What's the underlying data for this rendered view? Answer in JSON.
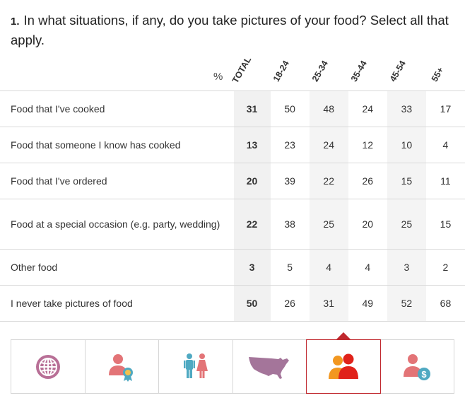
{
  "question": {
    "number": "1.",
    "text": "In what situations, if any, do you take pictures of your food? Select all that apply."
  },
  "percent_symbol": "%",
  "chart_data": {
    "type": "table",
    "columns": [
      "TOTAL",
      "18-24",
      "25-34",
      "35-44",
      "45-54",
      "55+"
    ],
    "rows": [
      {
        "label": "Food that I've cooked",
        "values": [
          31,
          50,
          48,
          24,
          33,
          17
        ]
      },
      {
        "label": "Food that someone I know has cooked",
        "values": [
          13,
          23,
          24,
          12,
          10,
          4
        ]
      },
      {
        "label": "Food that I've ordered",
        "values": [
          20,
          39,
          22,
          26,
          15,
          11
        ]
      },
      {
        "label": "Food at a special occasion (e.g. party, wedding)",
        "values": [
          22,
          38,
          25,
          20,
          25,
          15
        ]
      },
      {
        "label": "Other food",
        "values": [
          3,
          5,
          4,
          4,
          3,
          2
        ]
      },
      {
        "label": "I never take pictures of food",
        "values": [
          50,
          26,
          31,
          49,
          52,
          68
        ]
      }
    ]
  },
  "tabs": [
    {
      "icon": "globe-icon",
      "color": "#b86f96",
      "active": false
    },
    {
      "icon": "person-award-icon",
      "color": "#e37477",
      "active": false
    },
    {
      "icon": "gender-icon",
      "color": "#4fa9c2",
      "active": false
    },
    {
      "icon": "usa-map-icon",
      "color": "#a4759a",
      "active": false
    },
    {
      "icon": "age-group-icon",
      "color": "#ee4b16",
      "active": true
    },
    {
      "icon": "person-income-icon",
      "color": "#e37477",
      "active": false
    }
  ]
}
